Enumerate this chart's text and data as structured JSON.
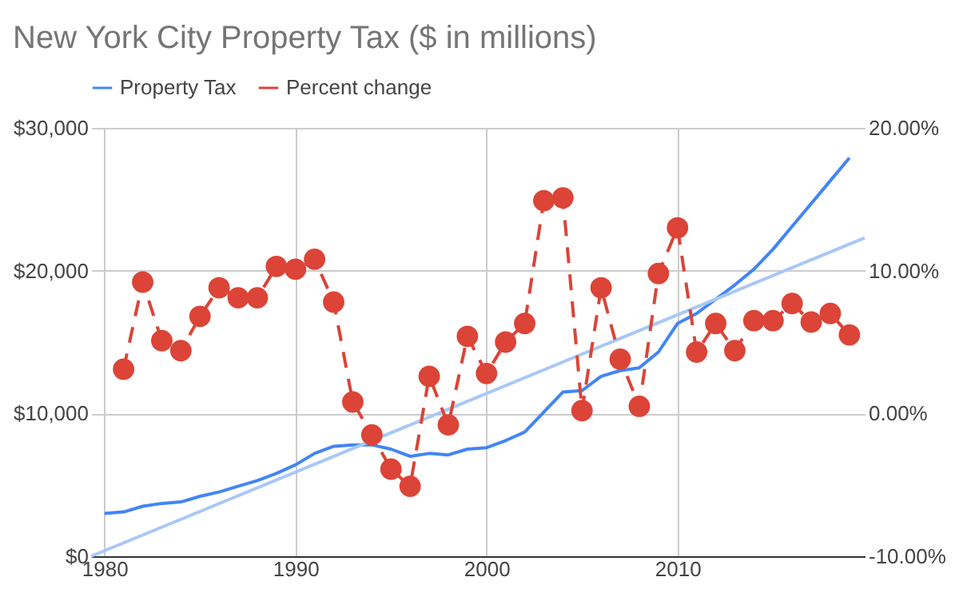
{
  "chart_data": {
    "type": "line",
    "title": "New York City Property Tax ($ in millions)",
    "x": [
      1980,
      1981,
      1982,
      1983,
      1984,
      1985,
      1986,
      1987,
      1988,
      1989,
      1990,
      1991,
      1992,
      1993,
      1994,
      1995,
      1996,
      1997,
      1998,
      1999,
      2000,
      2001,
      2002,
      2003,
      2004,
      2005,
      2006,
      2007,
      2008,
      2009,
      2010,
      2011,
      2012,
      2013,
      2014,
      2015,
      2016,
      2017,
      2018,
      2019
    ],
    "series": [
      {
        "name": "Property Tax",
        "color": "#4285f4",
        "marker": "none",
        "line_style": "solid",
        "values": [
          3000,
          3100,
          3500,
          3700,
          3800,
          4200,
          4500,
          4900,
          5300,
          5800,
          6400,
          7200,
          7700,
          7800,
          7800,
          7500,
          7000,
          7200,
          7100,
          7500,
          7600,
          8100,
          8700,
          10100,
          11500,
          11600,
          12600,
          13000,
          13200,
          14300,
          16300,
          17000,
          18000,
          19000,
          20100,
          21500,
          23100,
          24700,
          26300,
          27900
        ]
      },
      {
        "name": "Percent change",
        "color": "#db4437",
        "marker": "circle",
        "line_style": "dashed",
        "axis": "y2",
        "x": [
          1981,
          1982,
          1983,
          1984,
          1985,
          1986,
          1987,
          1988,
          1989,
          1990,
          1991,
          1992,
          1993,
          1994,
          1995,
          1996,
          1997,
          1998,
          1999,
          2000,
          2001,
          2002,
          2003,
          2004,
          2005,
          2006,
          2007,
          2008,
          2009,
          2010,
          2011,
          2012,
          2013,
          2014,
          2015,
          2016,
          2017,
          2018,
          2019
        ],
        "values": [
          3.1,
          9.2,
          5.1,
          4.4,
          6.8,
          8.8,
          8.1,
          8.1,
          10.3,
          10.1,
          10.8,
          7.8,
          0.8,
          -1.5,
          -3.9,
          -5.1,
          2.6,
          -0.8,
          5.4,
          2.8,
          5.0,
          6.3,
          14.9,
          15.1,
          0.2,
          8.8,
          3.8,
          0.5,
          9.8,
          13.0,
          4.3,
          6.3,
          4.4,
          6.5,
          6.5,
          7.7,
          6.4,
          7.0,
          5.5
        ]
      },
      {
        "color": "#a9c7f7",
        "marker": "none",
        "line_style": "solid",
        "x": [
          1979.3,
          2019.8
        ],
        "values": [
          0,
          22300
        ]
      }
    ],
    "xlim": [
      1979.3,
      2019.8
    ],
    "xticks": [
      1980,
      1990,
      2000,
      2010
    ],
    "ylim": [
      0,
      30000
    ],
    "yticks": [
      {
        "value": 0,
        "label": "$0"
      },
      {
        "value": 10000,
        "label": "$10,000"
      },
      {
        "value": 20000,
        "label": "$20,000"
      },
      {
        "value": 30000,
        "label": "$30,000"
      }
    ],
    "y2lim": [
      -10,
      20
    ],
    "y2ticks": [
      {
        "value": -10,
        "label": "-10.00%"
      },
      {
        "value": 0,
        "label": "0.00%"
      },
      {
        "value": 10,
        "label": "10.00%"
      },
      {
        "value": 20,
        "label": "20.00%"
      }
    ],
    "grid": true,
    "legend": "top"
  }
}
